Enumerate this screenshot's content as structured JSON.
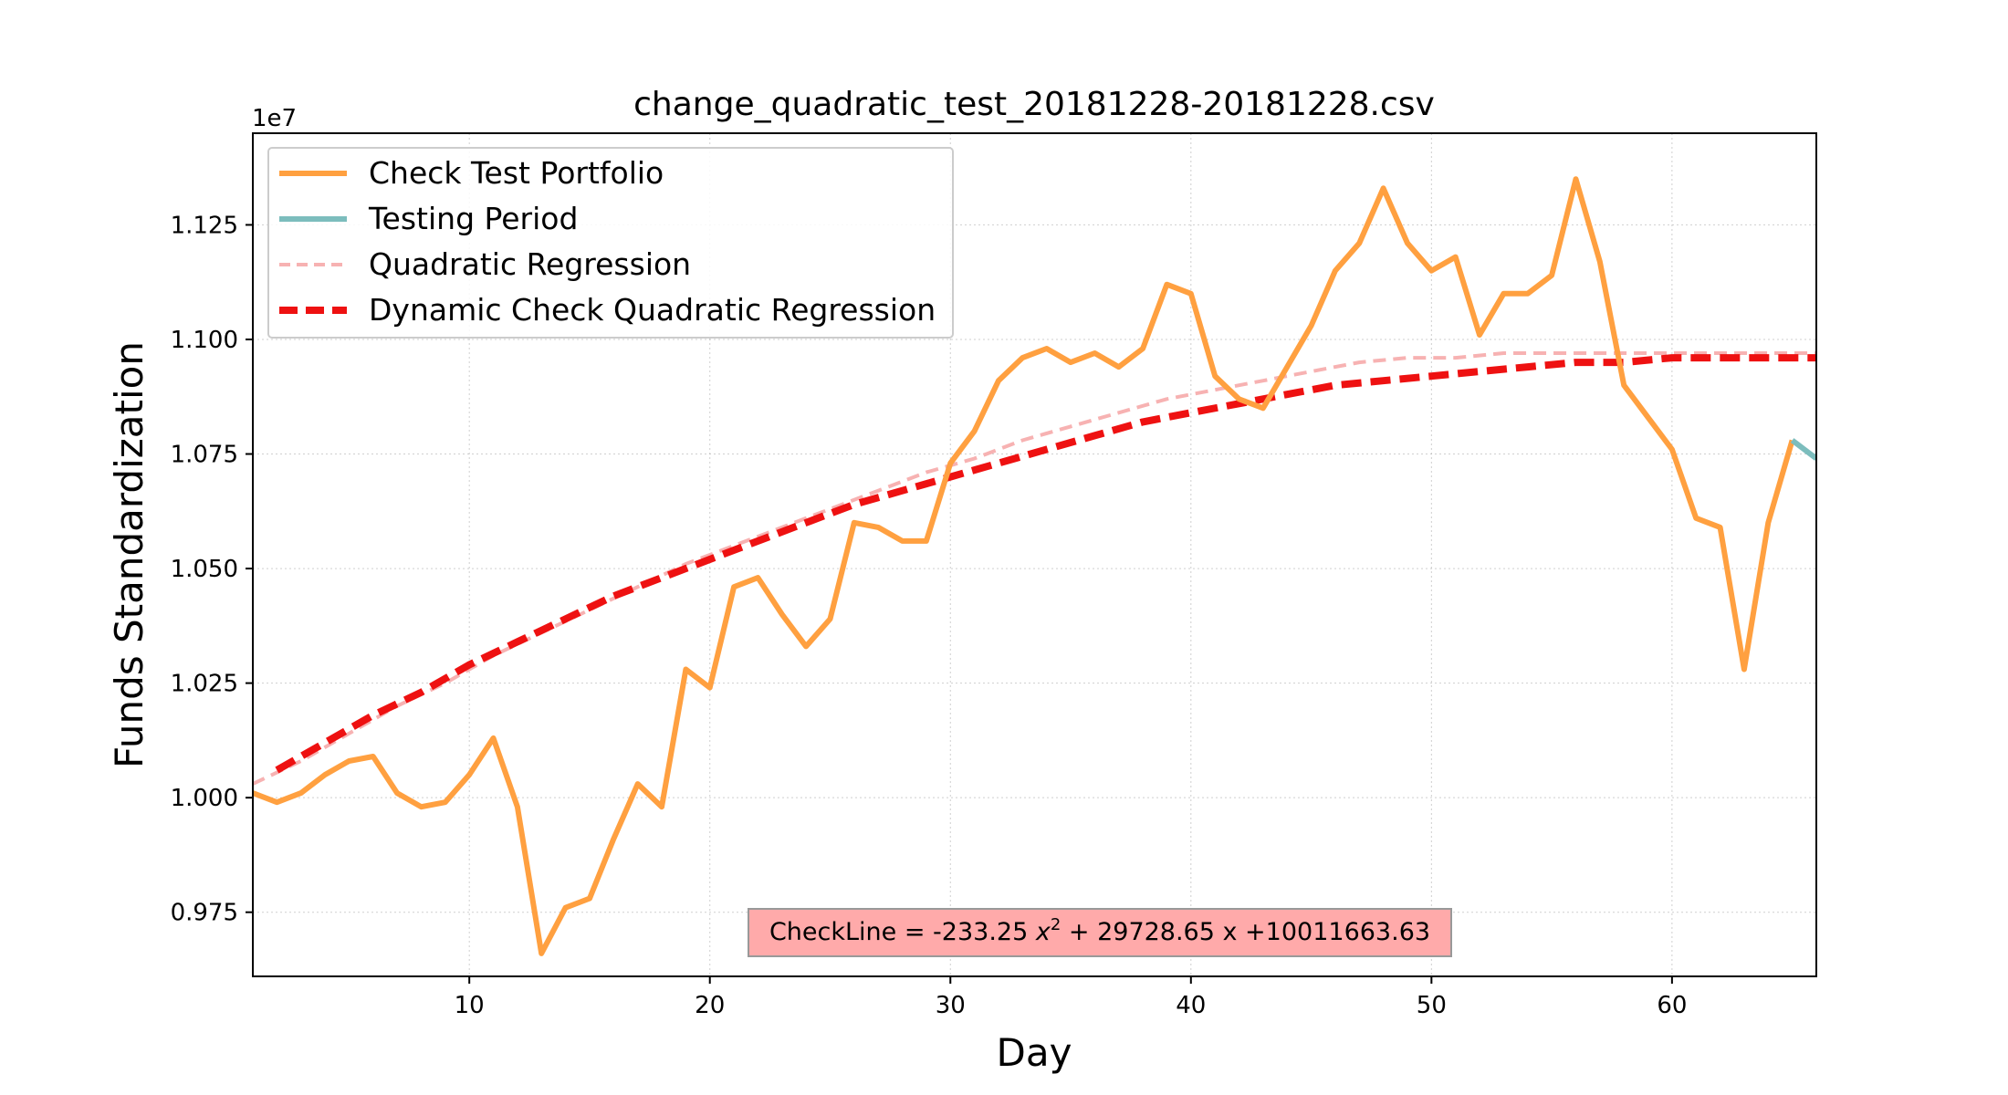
{
  "chart_data": {
    "type": "line",
    "title": "change_quadratic_test_20181228-20181228.csv",
    "xlabel": "Day",
    "ylabel": "Funds Standardization",
    "y_offset_label": "1e7",
    "xlim": [
      1,
      66
    ],
    "ylim": [
      9.61,
      11.45
    ],
    "y_scale_factor": 1000000,
    "xticks": [
      10,
      20,
      30,
      40,
      50,
      60
    ],
    "yticks": [
      9.75,
      10.0,
      10.25,
      10.5,
      10.75,
      11.0,
      11.25
    ],
    "ytick_labels": [
      "0.975",
      "1.000",
      "1.025",
      "1.050",
      "1.075",
      "1.100",
      "1.125"
    ],
    "grid": true,
    "legend_position": "top-left",
    "series": [
      {
        "name": "Check Test Portfolio",
        "color": "#FFA040",
        "style": "solid",
        "x": [
          1,
          2,
          3,
          4,
          5,
          6,
          7,
          8,
          9,
          10,
          11,
          12,
          13,
          14,
          15,
          16,
          17,
          18,
          19,
          20,
          21,
          22,
          23,
          24,
          25,
          26,
          27,
          28,
          29,
          30,
          31,
          32,
          33,
          34,
          35,
          36,
          37,
          38,
          39,
          40,
          41,
          42,
          43,
          44,
          45,
          46,
          47,
          48,
          49,
          50,
          51,
          52,
          53,
          54,
          55,
          56,
          57,
          58,
          59,
          60,
          61,
          62,
          63,
          64,
          65
        ],
        "values": [
          10.01,
          9.99,
          10.01,
          10.05,
          10.08,
          10.09,
          10.01,
          9.98,
          9.99,
          10.05,
          10.13,
          9.98,
          9.66,
          9.76,
          9.78,
          9.91,
          10.03,
          9.98,
          10.28,
          10.24,
          10.46,
          10.48,
          10.4,
          10.33,
          10.39,
          10.6,
          10.59,
          10.56,
          10.56,
          10.73,
          10.8,
          10.91,
          10.96,
          10.98,
          10.95,
          10.97,
          10.94,
          10.98,
          11.12,
          11.1,
          10.92,
          10.87,
          10.85,
          10.94,
          11.03,
          11.15,
          11.21,
          11.33,
          11.21,
          11.15,
          11.18,
          11.01,
          11.1,
          11.1,
          11.14,
          11.35,
          11.17,
          10.9,
          10.83,
          10.76,
          10.61,
          10.59,
          10.28,
          10.6,
          10.78
        ]
      },
      {
        "name": "Testing Period",
        "color": "#7CBDBD",
        "style": "solid",
        "x": [
          65,
          66
        ],
        "values": [
          10.78,
          10.74
        ]
      },
      {
        "name": "Quadratic Regression",
        "color": "#F7B2B2",
        "style": "dashed",
        "x": [
          1,
          3,
          5,
          7,
          9,
          11,
          13,
          15,
          17,
          19,
          21,
          23,
          25,
          27,
          29,
          31,
          33,
          35,
          37,
          39,
          41,
          43,
          45,
          47,
          49,
          51,
          53,
          55,
          57,
          59,
          61,
          63,
          65,
          66
        ],
        "values": [
          10.03,
          10.08,
          10.14,
          10.2,
          10.25,
          10.31,
          10.36,
          10.41,
          10.46,
          10.51,
          10.55,
          10.59,
          10.63,
          10.67,
          10.71,
          10.74,
          10.78,
          10.81,
          10.84,
          10.87,
          10.89,
          10.91,
          10.93,
          10.95,
          10.96,
          10.96,
          10.97,
          10.97,
          10.97,
          10.97,
          10.97,
          10.97,
          10.97,
          10.97
        ]
      },
      {
        "name": "Dynamic Check Quadratic Regression",
        "color": "#EE1111",
        "style": "dashed",
        "x": [
          2,
          4,
          6,
          8,
          10,
          12,
          14,
          16,
          18,
          20,
          22,
          24,
          26,
          28,
          30,
          32,
          34,
          36,
          38,
          40,
          42,
          44,
          46,
          48,
          50,
          52,
          54,
          56,
          58,
          60,
          62,
          64,
          66
        ],
        "values": [
          10.06,
          10.12,
          10.18,
          10.23,
          10.29,
          10.34,
          10.39,
          10.44,
          10.48,
          10.52,
          10.56,
          10.6,
          10.64,
          10.67,
          10.7,
          10.73,
          10.76,
          10.79,
          10.82,
          10.84,
          10.86,
          10.88,
          10.9,
          10.91,
          10.92,
          10.93,
          10.94,
          10.95,
          10.95,
          10.96,
          10.96,
          10.96,
          10.96
        ]
      }
    ],
    "annotation": {
      "text_prefix": "CheckLine = -233.25 ",
      "text_var": "x",
      "text_sup": "2",
      "text_suffix": " + 29728.65 x +10011663.63",
      "position": "bottom-center",
      "background": "#FFAAAA"
    }
  }
}
